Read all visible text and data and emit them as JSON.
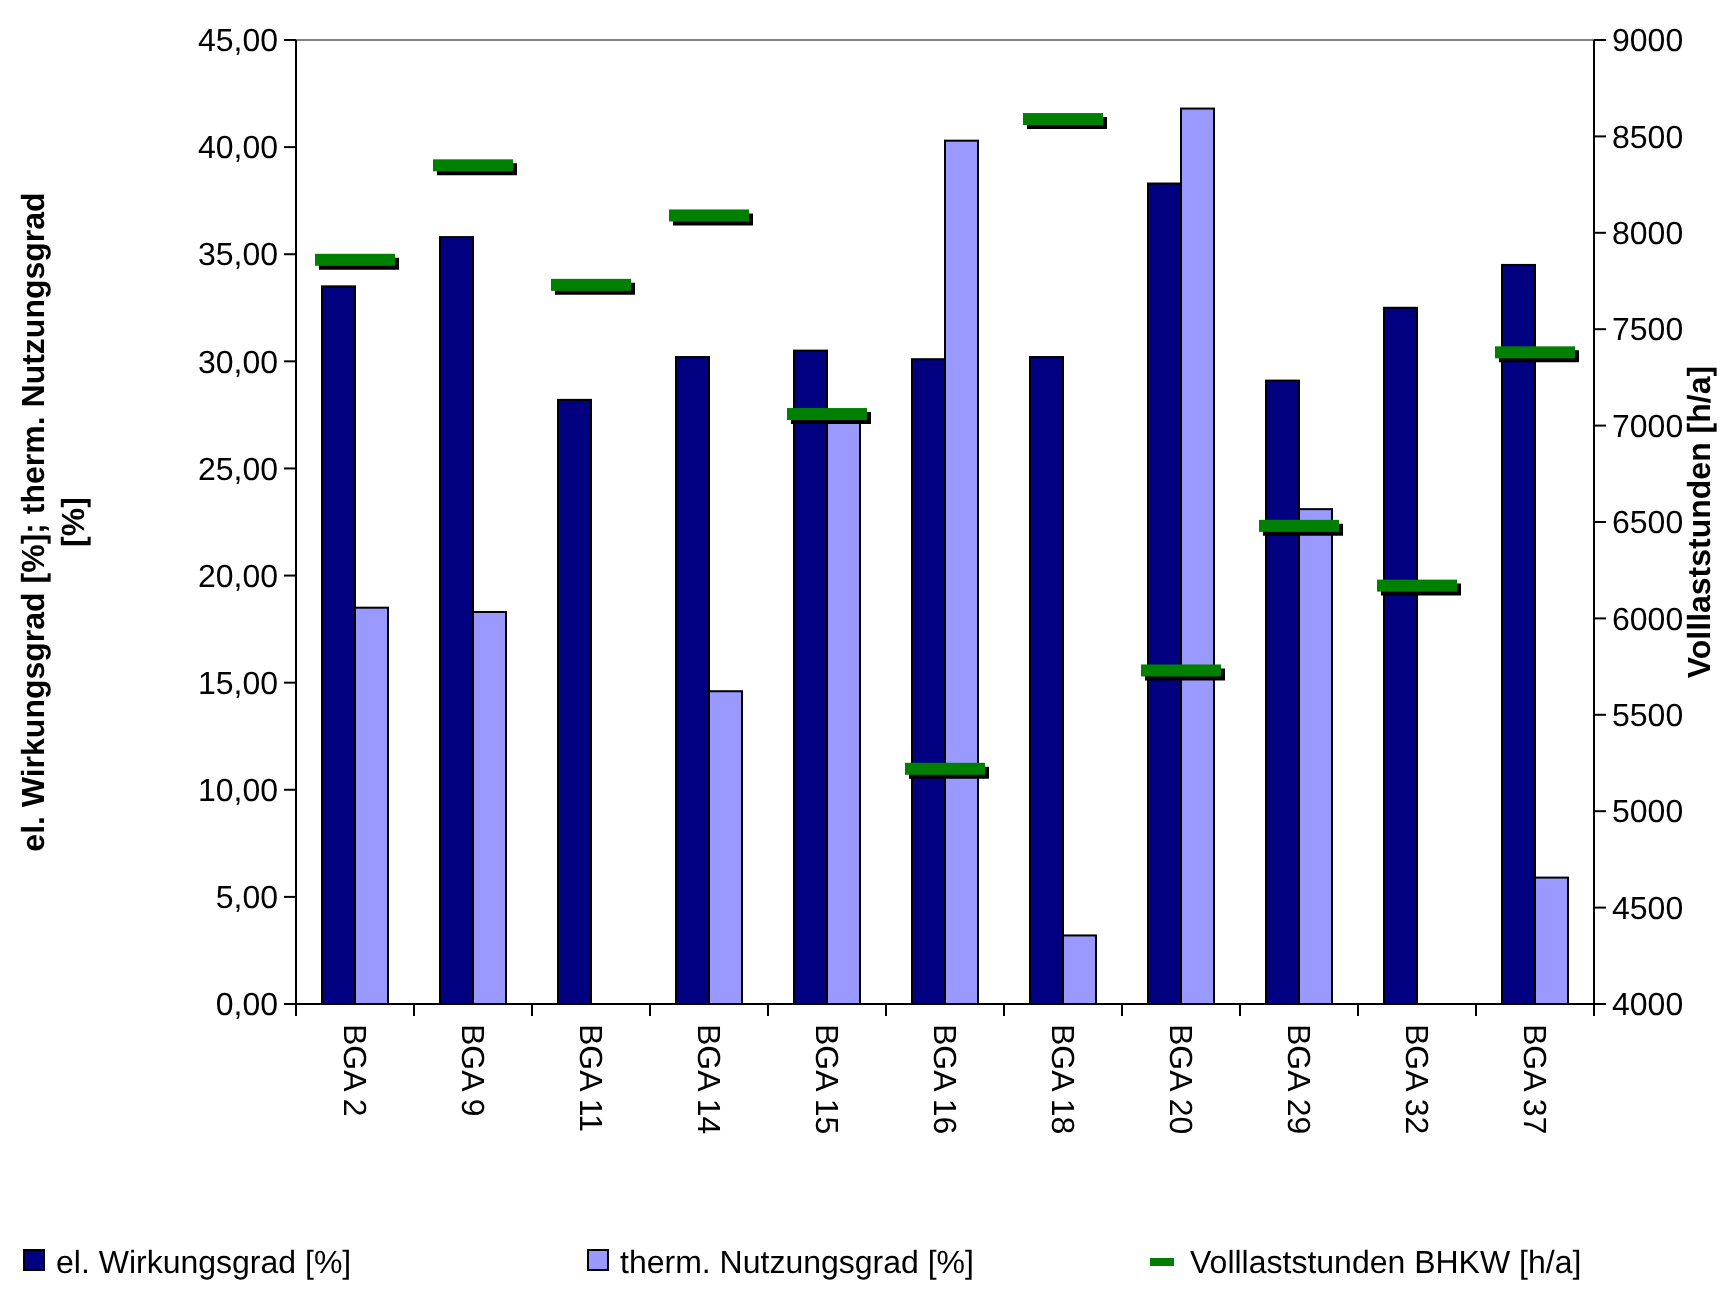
{
  "chart_data": {
    "type": "bar",
    "ylabel": "el. Wirkungsgrad [%]; therm. Nutzungsgrad [%]",
    "y2label": "Volllaststunden [h/a]",
    "categories": [
      "BGA 2",
      "BGA 9",
      "BGA 11",
      "BGA 14",
      "BGA 15",
      "BGA 16",
      "BGA 18",
      "BGA 20",
      "BGA 29",
      "BGA 32",
      "BGA 37"
    ],
    "series": [
      {
        "name": "el. Wirkungsgrad [%]",
        "color": "#000080",
        "values": [
          33.5,
          35.8,
          28.2,
          30.2,
          30.5,
          30.1,
          30.2,
          38.3,
          29.1,
          32.5,
          34.5
        ]
      },
      {
        "name": "therm. Nutzungsgrad [%]",
        "color": "#9999ff",
        "values": [
          18.5,
          18.3,
          null,
          14.6,
          27.2,
          40.3,
          3.2,
          41.8,
          23.1,
          null,
          5.9
        ]
      },
      {
        "name": "Volllaststunden BHKW [h/a]",
        "type": "scatter",
        "axis": "y2",
        "color": "#008000",
        "values": [
          7860,
          8350,
          7730,
          8090,
          7060,
          5220,
          8590,
          5730,
          6480,
          6170,
          7380
        ]
      }
    ],
    "ylim": [
      0,
      45
    ],
    "yticks": [
      {
        "value": 0,
        "label": "0,00"
      },
      {
        "value": 5,
        "label": "5,00"
      },
      {
        "value": 10,
        "label": "10,00"
      },
      {
        "value": 15,
        "label": "15,00"
      },
      {
        "value": 20,
        "label": "20,00"
      },
      {
        "value": 25,
        "label": "25,00"
      },
      {
        "value": 30,
        "label": "30,00"
      },
      {
        "value": 35,
        "label": "35,00"
      },
      {
        "value": 40,
        "label": "40,00"
      },
      {
        "value": 45,
        "label": "45,00"
      }
    ],
    "y2lim": [
      4000,
      9000
    ],
    "y2ticks": [
      4000,
      4500,
      5000,
      5500,
      6000,
      6500,
      7000,
      7500,
      8000,
      8500,
      9000
    ],
    "legend": "bottom",
    "grid": false
  }
}
